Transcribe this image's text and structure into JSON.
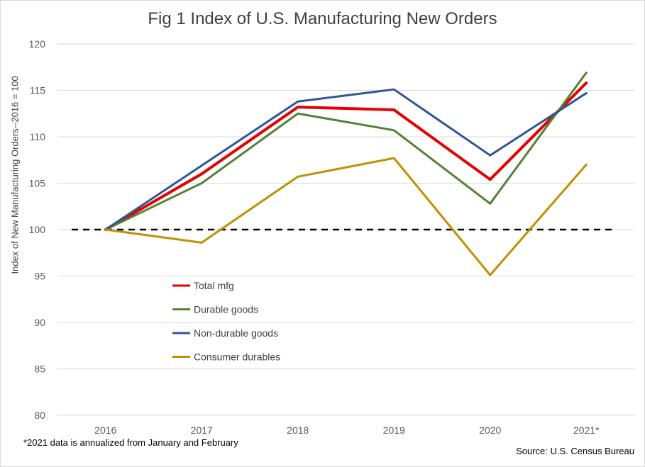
{
  "chart_data": {
    "type": "line",
    "title": "Fig 1 Index of U.S. Manufacturing New Orders",
    "ylabel": "Index of New Manufacturing Orders--2016 = 100",
    "xlabel": "",
    "categories": [
      "2016",
      "2017",
      "2018",
      "2019",
      "2020",
      "2021*"
    ],
    "ylim": [
      80,
      120
    ],
    "yticks": [
      80,
      85,
      90,
      95,
      100,
      105,
      110,
      115,
      120
    ],
    "grid": true,
    "reference_line": {
      "value": 100,
      "style": "dashed",
      "color": "#000000"
    },
    "legend_position": "lower-left",
    "series": [
      {
        "name": "Total mfg",
        "color": "#e60000",
        "values": [
          100,
          106.0,
          113.2,
          112.9,
          105.4,
          115.8
        ]
      },
      {
        "name": "Durable goods",
        "color": "#548235",
        "values": [
          100,
          105.0,
          112.5,
          110.7,
          102.8,
          116.9
        ]
      },
      {
        "name": "Non-durable goods",
        "color": "#2f5597",
        "values": [
          100,
          106.9,
          113.8,
          115.1,
          108.0,
          114.7
        ]
      },
      {
        "name": "Consumer durables",
        "color": "#bf9000",
        "values": [
          100,
          98.6,
          105.7,
          107.7,
          95.1,
          107.0
        ]
      }
    ],
    "footnote": "*2021 data is annualized from January and February",
    "source": "Source: U.S. Census Bureau"
  }
}
